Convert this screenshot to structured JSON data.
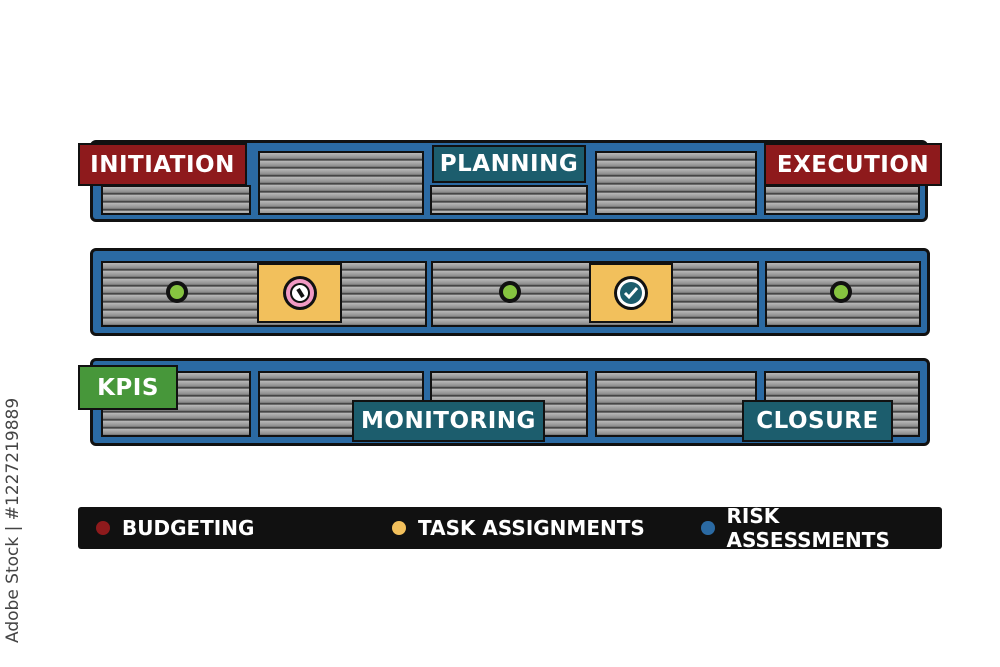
{
  "phases": {
    "initiation": "INITIATION",
    "planning": "PLANNING",
    "execution": "EXECUTION",
    "kpis": "KPIS",
    "monitoring": "MONITORING",
    "closure": "CLOSURE"
  },
  "legend": [
    {
      "label": "BUDGETING",
      "color": "#8e1a1c"
    },
    {
      "label": "TASK ASSIGNMENTS",
      "color": "#f2c05c"
    },
    {
      "label": "RISK ASSESSMENTS",
      "color": "#2b6aa3"
    }
  ],
  "icons": {
    "milestone": "green-dot",
    "clock": "clock-icon",
    "check": "check-circle-icon"
  },
  "watermark": "Adobe Stock | #1227219889"
}
